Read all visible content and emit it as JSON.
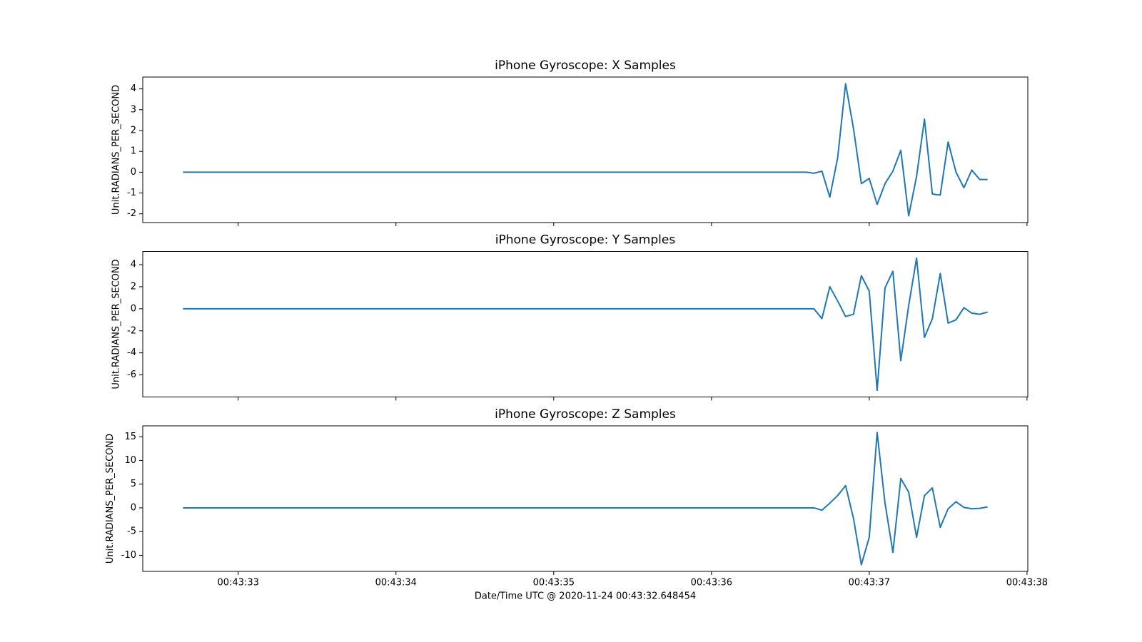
{
  "chart_data": [
    {
      "type": "line",
      "title": "iPhone Gyroscope: X Samples",
      "y_label": "Unit.RADIANS_PER_SECOND",
      "color": "#1f77b4",
      "x": [
        32.65,
        33.5,
        34.5,
        35.5,
        36.5,
        36.6,
        36.65,
        36.7,
        36.75,
        36.8,
        36.85,
        36.9,
        36.95,
        37.0,
        37.05,
        37.1,
        37.15,
        37.2,
        37.25,
        37.3,
        37.35,
        37.4,
        37.45,
        37.5,
        37.55,
        37.6,
        37.65,
        37.7,
        37.75
      ],
      "values": [
        0,
        0,
        0,
        0,
        0,
        0,
        -0.05,
        0.05,
        -1.2,
        0.7,
        4.25,
        2.1,
        -0.55,
        -0.3,
        -1.55,
        -0.55,
        0.05,
        1.05,
        -2.1,
        -0.2,
        2.55,
        -1.05,
        -1.1,
        1.45,
        0,
        -0.75,
        0.1,
        -0.35,
        -0.35
      ],
      "xlim": [
        32.395,
        38.005
      ],
      "ylim": [
        -2.42,
        4.57
      ],
      "yticks": [
        -2,
        -1,
        0,
        1,
        2,
        3,
        4
      ]
    },
    {
      "type": "line",
      "title": "iPhone Gyroscope: Y Samples",
      "y_label": "Unit.RADIANS_PER_SECOND",
      "color": "#1f77b4",
      "x": [
        32.65,
        33.5,
        34.5,
        35.5,
        36.5,
        36.6,
        36.65,
        36.7,
        36.75,
        36.8,
        36.85,
        36.9,
        36.95,
        37.0,
        37.05,
        37.1,
        37.15,
        37.2,
        37.25,
        37.3,
        37.35,
        37.4,
        37.45,
        37.5,
        37.55,
        37.6,
        37.65,
        37.7,
        37.75
      ],
      "values": [
        0,
        0,
        0,
        0,
        0,
        0,
        0,
        -0.9,
        2.0,
        0.7,
        -0.7,
        -0.5,
        3.0,
        1.6,
        -7.4,
        1.9,
        3.4,
        -4.7,
        0.3,
        4.6,
        -2.6,
        -0.9,
        3.2,
        -1.3,
        -1.0,
        0.1,
        -0.4,
        -0.5,
        -0.3
      ],
      "xlim": [
        32.395,
        38.005
      ],
      "ylim": [
        -8.0,
        5.2
      ],
      "yticks": [
        -6,
        -4,
        -2,
        0,
        2,
        4
      ]
    },
    {
      "type": "line",
      "title": "iPhone Gyroscope: Z Samples",
      "y_label": "Unit.RADIANS_PER_SECOND",
      "x_label": "Date/Time UTC @ 2020-11-24 00:43:32.648454",
      "color": "#1f77b4",
      "x": [
        32.65,
        33.5,
        34.5,
        35.5,
        36.5,
        36.6,
        36.65,
        36.7,
        36.75,
        36.8,
        36.85,
        36.9,
        36.95,
        37.0,
        37.05,
        37.1,
        37.15,
        37.2,
        37.25,
        37.3,
        37.35,
        37.4,
        37.45,
        37.5,
        37.55,
        37.6,
        37.65,
        37.7,
        37.75
      ],
      "values": [
        0,
        0,
        0,
        0,
        0,
        0,
        0,
        -0.5,
        1.0,
        2.6,
        4.7,
        -2.2,
        -12.0,
        -6.2,
        15.9,
        1.0,
        -9.4,
        6.2,
        3.3,
        -6.2,
        2.6,
        4.2,
        -4.1,
        -0.2,
        1.3,
        0.1,
        -0.2,
        -0.1,
        0.2
      ],
      "xlim": [
        32.395,
        38.005
      ],
      "ylim": [
        -13.4,
        17.3
      ],
      "yticks": [
        -10,
        -5,
        0,
        5,
        10,
        15
      ],
      "xticks": [
        {
          "value": 33,
          "label": "00:43:33"
        },
        {
          "value": 34,
          "label": "00:43:34"
        },
        {
          "value": 35,
          "label": "00:43:35"
        },
        {
          "value": 36,
          "label": "00:43:36"
        },
        {
          "value": 37,
          "label": "00:43:37"
        },
        {
          "value": 38,
          "label": "00:43:38"
        }
      ]
    }
  ]
}
